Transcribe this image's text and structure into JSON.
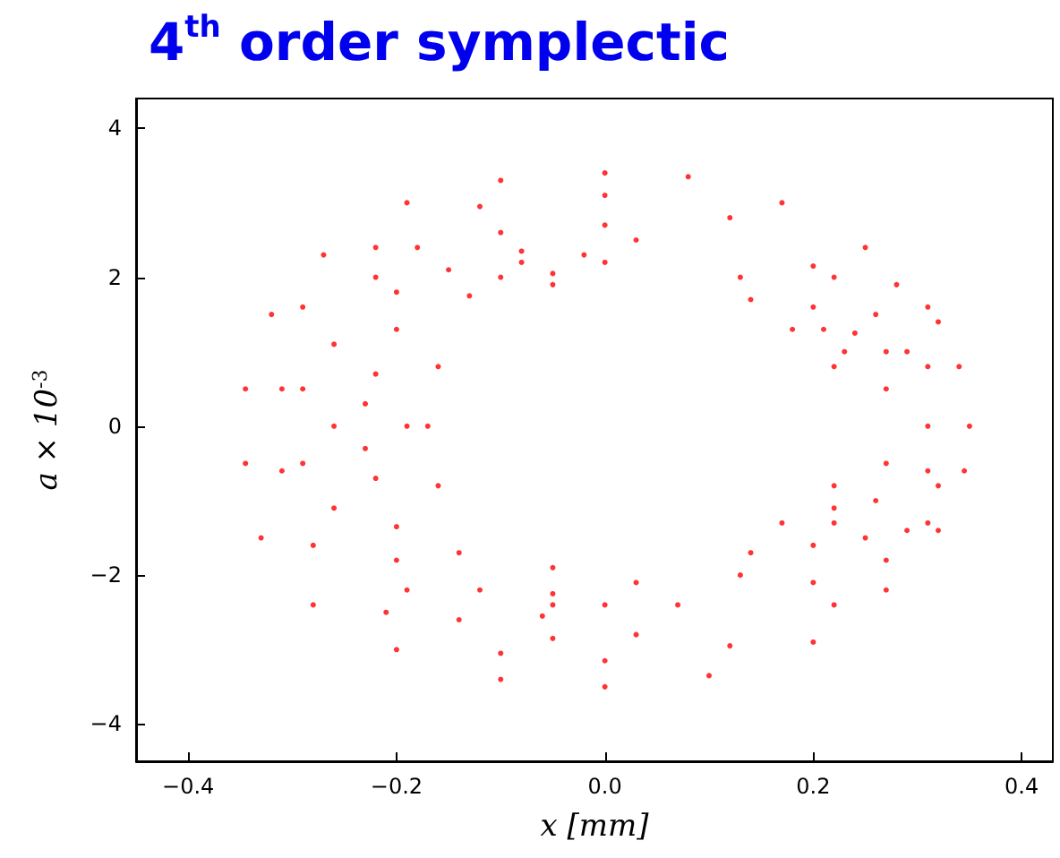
{
  "chart_data": {
    "type": "scatter",
    "title": "4$^{th}$ order symplectic",
    "xlabel": "x [mm]",
    "ylabel": "a × 10$^{-3}$",
    "xlim": [
      -0.45,
      0.43
    ],
    "ylim": [
      -4.5,
      4.4
    ],
    "xticks": [
      {
        "value": -0.4,
        "label": "−0.4"
      },
      {
        "value": -0.2,
        "label": "−0.2"
      },
      {
        "value": 0,
        "label": "0.0"
      },
      {
        "value": 0.2,
        "label": "0.2"
      },
      {
        "value": 0.4,
        "label": "0.4"
      }
    ],
    "yticks": [
      {
        "value": -4,
        "label": "−4"
      },
      {
        "value": -2,
        "label": "−2"
      },
      0,
      2,
      4
    ],
    "marker": "circle",
    "series": [
      {
        "color": "#ff0000",
        "x": [
          0.35,
          0.34,
          0.31,
          0.25,
          0.17,
          0.08,
          0,
          -0.1,
          -0.19,
          -0.27,
          -0.32,
          -0.345,
          -0.345,
          -0.33,
          -0.28,
          -0.2,
          -0.1,
          0,
          0.1,
          0.2,
          0.27,
          0.32,
          0.345,
          0.31,
          0.29,
          0.22,
          0.12,
          0,
          -0.12,
          -0.22,
          -0.29,
          -0.31,
          -0.31,
          -0.28,
          -0.21,
          -0.1,
          0,
          0.12,
          0.22,
          0.29,
          0.31,
          -0.22,
          -0.18,
          -0.1,
          0,
          0.03,
          0,
          -0.05,
          -0.13,
          -0.2,
          -0.15,
          -0.08,
          -0.02,
          -0.05,
          -0.1,
          -0.08,
          0.13,
          0.2,
          0.28,
          0.32,
          0.31,
          0.27,
          0.22,
          0.18,
          0.14,
          0.2,
          0.26,
          0.27,
          0.23,
          0.21,
          0.24,
          -0.2,
          -0.26,
          -0.29,
          -0.29,
          -0.26,
          -0.2,
          -0.16,
          -0.17,
          -0.16,
          -0.22,
          -0.26,
          -0.22,
          -0.19,
          -0.23,
          -0.23,
          0.13,
          0.2,
          0.27,
          0.31,
          0.32,
          0.27,
          0.22,
          0.17,
          0.14,
          0.2,
          0.25,
          0.26,
          0.22,
          0.22,
          -0.2,
          -0.14,
          -0.05,
          0.03,
          0.07,
          0.03,
          -0.05,
          -0.14,
          -0.19,
          -0.12,
          -0.05,
          0,
          -0.06,
          -0.05
        ],
        "values": [
          0,
          0.8,
          1.6,
          2.4,
          3.0,
          3.35,
          3.4,
          3.3,
          3.0,
          2.3,
          1.5,
          0.5,
          -0.5,
          -1.5,
          -2.4,
          -3.0,
          -3.4,
          -3.5,
          -3.35,
          -2.9,
          -2.2,
          -1.4,
          -0.6,
          0,
          1.0,
          2.0,
          2.8,
          3.1,
          2.95,
          2.4,
          1.6,
          0.5,
          -0.6,
          -1.6,
          -2.5,
          -3.05,
          -3.15,
          -2.95,
          -2.4,
          -1.4,
          -0.6,
          2.0,
          2.4,
          2.6,
          2.7,
          2.5,
          2.2,
          1.9,
          1.75,
          1.8,
          2.1,
          2.35,
          2.3,
          2.05,
          2.0,
          2.2,
          2.0,
          2.15,
          1.9,
          1.4,
          0.8,
          0.5,
          0.8,
          1.3,
          1.7,
          1.6,
          1.5,
          1.0,
          1.0,
          1.3,
          1.25,
          1.3,
          1.1,
          0.5,
          -0.5,
          -1.1,
          -1.35,
          -0.8,
          0,
          0.8,
          0.7,
          0,
          -0.7,
          0,
          0.3,
          -0.3,
          -2.0,
          -2.1,
          -1.8,
          -1.3,
          -0.8,
          -0.5,
          -0.8,
          -1.3,
          -1.7,
          -1.6,
          -1.5,
          -1.0,
          -1.1,
          -1.3,
          -1.8,
          -1.7,
          -1.9,
          -2.1,
          -2.4,
          -2.8,
          -2.85,
          -2.6,
          -2.2,
          -2.2,
          -2.25,
          -2.4,
          -2.55,
          -2.4
        ]
      }
    ]
  }
}
